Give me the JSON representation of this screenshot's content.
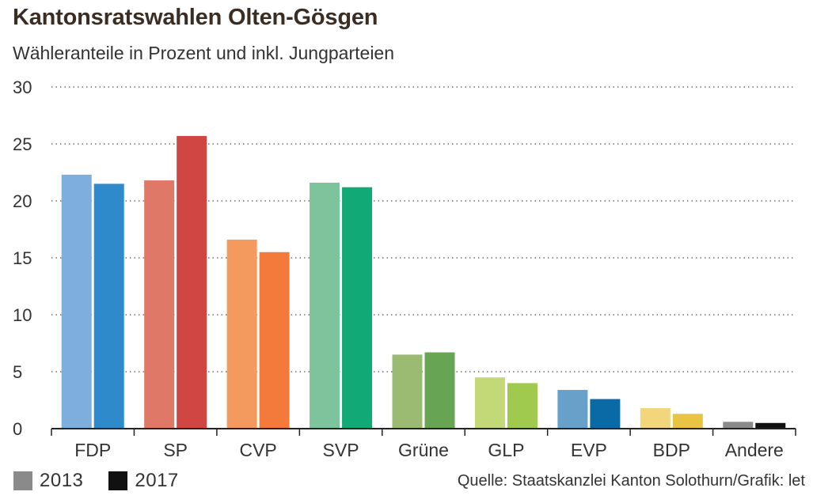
{
  "header": {
    "title": "Kantonsratswahlen Olten-Gösgen",
    "subtitle": "Wähleranteile in Prozent und inkl. Jungparteien"
  },
  "legend": {
    "items": [
      {
        "label": "2013",
        "color": "#8a8a8a"
      },
      {
        "label": "2017",
        "color": "#111111"
      }
    ]
  },
  "source": "Quelle: Staatskanzlei Kanton Solothurn/Grafik: let",
  "chart_data": {
    "type": "bar",
    "title": "Kantonsratswahlen Olten-Gösgen",
    "subtitle": "Wähleranteile in Prozent und inkl. Jungparteien",
    "xlabel": "",
    "ylabel": "",
    "ylim": [
      0,
      30
    ],
    "yticks": [
      0,
      5,
      10,
      15,
      20,
      25,
      30
    ],
    "grid": "dotted horizontal",
    "legend_position": "bottom-left",
    "categories": [
      "FDP",
      "SP",
      "CVP",
      "SVP",
      "Grüne",
      "GLP",
      "EVP",
      "BDP",
      "Andere"
    ],
    "series": [
      {
        "name": "2013",
        "values": [
          22.3,
          21.8,
          16.6,
          21.6,
          6.5,
          4.5,
          3.4,
          1.8,
          0.6
        ]
      },
      {
        "name": "2017",
        "values": [
          21.5,
          25.7,
          15.5,
          21.2,
          6.7,
          4.0,
          2.6,
          1.3,
          0.5
        ]
      }
    ],
    "colors": {
      "2013": [
        "#7eaedc",
        "#e07868",
        "#f59a5f",
        "#7dc49d",
        "#9bbb72",
        "#c3d977",
        "#67a0c9",
        "#f2d67b",
        "#8a8a8a"
      ],
      "2017": [
        "#2e8acb",
        "#cf4643",
        "#f47a3c",
        "#11aa77",
        "#68a552",
        "#9fca4e",
        "#0a6aa6",
        "#e8c344",
        "#111111"
      ]
    }
  }
}
